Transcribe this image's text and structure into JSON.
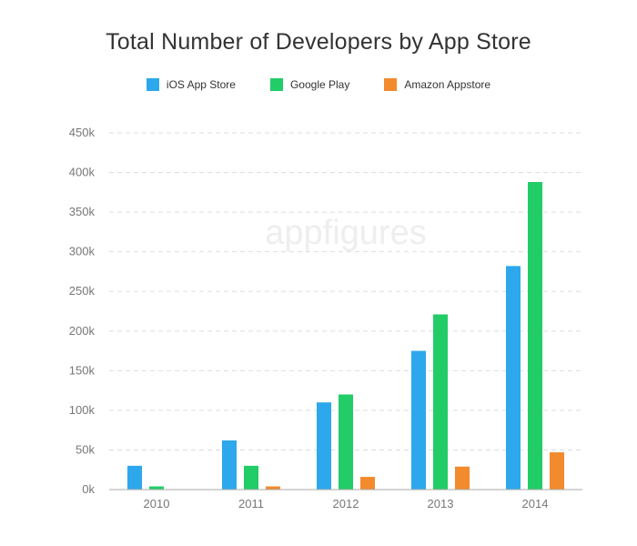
{
  "chart_data": {
    "type": "bar",
    "title": "Total Number of Developers by App Store",
    "watermark": "appfigures",
    "categories": [
      "2010",
      "2011",
      "2012",
      "2013",
      "2014"
    ],
    "series": [
      {
        "name": "iOS App Store",
        "color": "#2da8ec",
        "values": [
          30000,
          62000,
          110000,
          175000,
          282000
        ]
      },
      {
        "name": "Google Play",
        "color": "#22cc66",
        "values": [
          4000,
          30000,
          120000,
          221000,
          388000
        ]
      },
      {
        "name": "Amazon Appstore",
        "color": "#f28a2e",
        "values": [
          0,
          4000,
          16000,
          29000,
          47000
        ]
      }
    ],
    "ylim": [
      0,
      450000
    ],
    "yticks": [
      {
        "value": 0,
        "label": "0k"
      },
      {
        "value": 50000,
        "label": "50k"
      },
      {
        "value": 100000,
        "label": "100k"
      },
      {
        "value": 150000,
        "label": "150k"
      },
      {
        "value": 200000,
        "label": "200k"
      },
      {
        "value": 250000,
        "label": "250k"
      },
      {
        "value": 300000,
        "label": "300k"
      },
      {
        "value": 350000,
        "label": "350k"
      },
      {
        "value": 400000,
        "label": "400k"
      },
      {
        "value": 450000,
        "label": "450k"
      }
    ],
    "grid": true,
    "legend_position": "top"
  }
}
